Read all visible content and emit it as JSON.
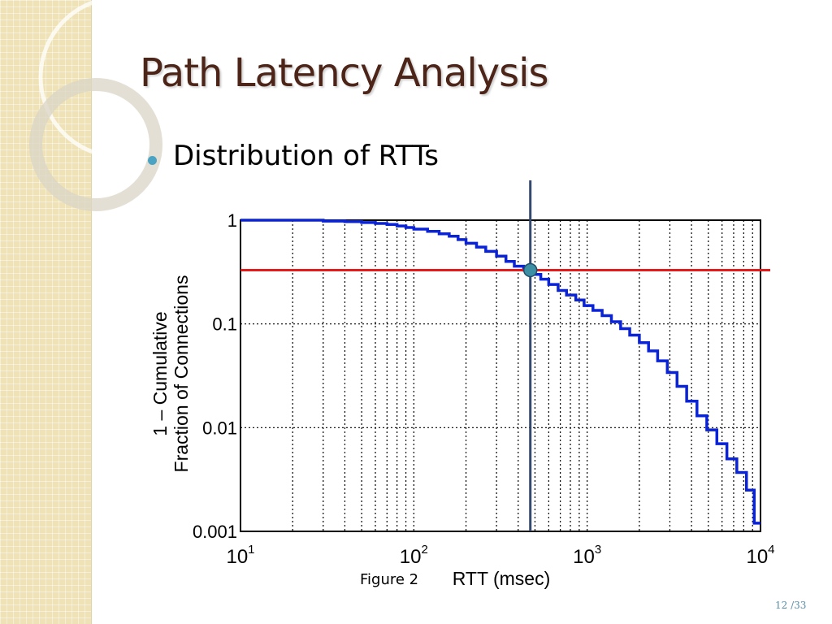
{
  "slide": {
    "title": "Path Latency Analysis",
    "bullet": "Distribution of RTTs",
    "figure_caption": "Figure 2",
    "page_number": "12 /33"
  },
  "colors": {
    "title": "#4d2418",
    "bullet": "#4aa3c2",
    "side_strip": "#efe2b6",
    "ccdf_line": "#0a23d6",
    "threshold_line": "#e31b1b",
    "marker_line": "#34496e",
    "marker_point": "#3d8fa3",
    "page_number": "#5a8fa6"
  },
  "chart_data": {
    "type": "line",
    "title": "",
    "xlabel": "RTT (msec)",
    "ylabel": "1 – Cumulative Fraction of Connections",
    "ylabel_lines": [
      "1 – Cumulative",
      "Fraction of  Connections"
    ],
    "xscale": "log",
    "yscale": "log",
    "xlim": [
      10,
      10000
    ],
    "ylim": [
      0.001,
      1
    ],
    "grid": true,
    "x_ticks": [
      {
        "base": "10",
        "exp": "1",
        "value": 10
      },
      {
        "base": "10",
        "exp": "2",
        "value": 100
      },
      {
        "base": "10",
        "exp": "3",
        "value": 1000
      },
      {
        "base": "10",
        "exp": "4",
        "value": 10000
      }
    ],
    "y_ticks": [
      {
        "label": "1",
        "value": 1
      },
      {
        "label": "0.1",
        "value": 0.1
      },
      {
        "label": "0.01",
        "value": 0.01
      },
      {
        "label": "0.001",
        "value": 0.001
      }
    ],
    "series": [
      {
        "x": [
          10,
          30,
          40,
          50,
          60,
          70,
          80,
          90,
          100,
          120,
          140,
          160,
          180,
          200,
          230,
          260,
          300,
          340,
          380,
          430,
          480,
          540,
          600,
          680,
          760,
          860,
          960,
          1080,
          1220,
          1380,
          1560,
          1760,
          2000,
          2260,
          2550,
          2900,
          3300,
          3750,
          4300,
          4900,
          5600,
          6400,
          7300,
          8300,
          9200,
          10000
        ],
        "y": [
          1.0,
          0.98,
          0.97,
          0.95,
          0.93,
          0.91,
          0.88,
          0.85,
          0.82,
          0.78,
          0.74,
          0.7,
          0.65,
          0.6,
          0.55,
          0.5,
          0.45,
          0.4,
          0.36,
          0.33,
          0.3,
          0.27,
          0.24,
          0.21,
          0.19,
          0.17,
          0.15,
          0.135,
          0.12,
          0.105,
          0.09,
          0.078,
          0.066,
          0.055,
          0.044,
          0.034,
          0.025,
          0.018,
          0.013,
          0.0095,
          0.007,
          0.005,
          0.0037,
          0.0025,
          0.0012,
          0.0012
        ]
      }
    ],
    "annotations": {
      "horizontal_line_y": 0.33,
      "vertical_line_x": 470,
      "intersection_point": {
        "x": 470,
        "y": 0.33
      }
    }
  }
}
